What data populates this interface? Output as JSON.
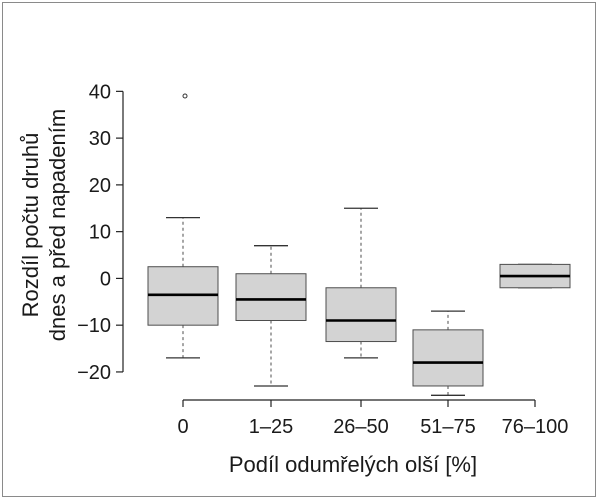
{
  "chart_data": {
    "type": "boxplot",
    "xlabel": "Podíl odumřelých olší [%]",
    "ylabel_lines": [
      "Rozdíl počtu druhů",
      "dnes a před napadením"
    ],
    "ylim": [
      -26,
      42
    ],
    "yticks": [
      -20,
      -10,
      0,
      10,
      20,
      30,
      40
    ],
    "ytick_labels": [
      "−20",
      "−10",
      "0",
      "10",
      "20",
      "30",
      "40"
    ],
    "categories": [
      "0",
      "1–25",
      "26–50",
      "51–75",
      "76–100"
    ],
    "boxes": [
      {
        "category": "0",
        "whisker_low": -17,
        "q1": -10,
        "median": -3.5,
        "q3": 2.5,
        "whisker_high": 13,
        "outliers": [
          39
        ]
      },
      {
        "category": "1–25",
        "whisker_low": -23,
        "q1": -9,
        "median": -4.5,
        "q3": 1,
        "whisker_high": 7,
        "outliers": []
      },
      {
        "category": "26–50",
        "whisker_low": -17,
        "q1": -13.5,
        "median": -9,
        "q3": -2,
        "whisker_high": 15,
        "outliers": []
      },
      {
        "category": "51–75",
        "whisker_low": -25,
        "q1": -23,
        "median": -18,
        "q3": -11,
        "whisker_high": -7,
        "outliers": []
      },
      {
        "category": "76–100",
        "whisker_low": -2,
        "q1": -2,
        "median": 0.5,
        "q3": 3,
        "whisker_high": 3,
        "outliers": []
      }
    ],
    "grid": false,
    "legend": "none"
  },
  "colors": {
    "box_fill": "#d3d3d3",
    "box_stroke": "#4d4d4d",
    "median": "#000000",
    "axis": "#222222"
  }
}
